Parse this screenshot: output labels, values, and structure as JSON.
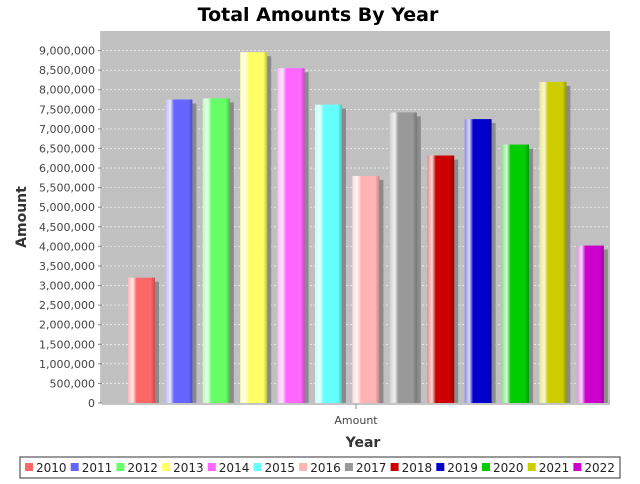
{
  "chart_data": {
    "type": "bar",
    "title": "Total Amounts By Year",
    "xlabel": "Year",
    "ylabel": "Amount",
    "categories": [
      "Amount"
    ],
    "series": [
      {
        "name": "2010",
        "color": "#ff6666",
        "values": [
          3200000
        ]
      },
      {
        "name": "2011",
        "color": "#6666ff",
        "values": [
          7750000
        ]
      },
      {
        "name": "2012",
        "color": "#66ff66",
        "values": [
          7780000
        ]
      },
      {
        "name": "2013",
        "color": "#ffff66",
        "values": [
          8960000
        ]
      },
      {
        "name": "2014",
        "color": "#ff66ff",
        "values": [
          8550000
        ]
      },
      {
        "name": "2015",
        "color": "#66ffff",
        "values": [
          7620000
        ]
      },
      {
        "name": "2016",
        "color": "#ffb3b3",
        "values": [
          5800000
        ]
      },
      {
        "name": "2017",
        "color": "#999999",
        "values": [
          7420000
        ]
      },
      {
        "name": "2018",
        "color": "#cc0000",
        "values": [
          6320000
        ]
      },
      {
        "name": "2019",
        "color": "#0000cc",
        "values": [
          7250000
        ]
      },
      {
        "name": "2020",
        "color": "#00cc00",
        "values": [
          6600000
        ]
      },
      {
        "name": "2021",
        "color": "#cccc00",
        "values": [
          8200000
        ]
      },
      {
        "name": "2022",
        "color": "#cc00cc",
        "values": [
          4020000
        ]
      }
    ],
    "ylim": [
      0,
      9500000
    ],
    "yticks": [
      0,
      500000,
      1000000,
      1500000,
      2000000,
      2500000,
      3000000,
      3500000,
      4000000,
      4500000,
      5000000,
      5500000,
      6000000,
      6500000,
      7000000,
      7500000,
      8000000,
      8500000,
      9000000
    ],
    "grid": true,
    "legend": "bottom",
    "plot_background": "#c0c0c0"
  }
}
